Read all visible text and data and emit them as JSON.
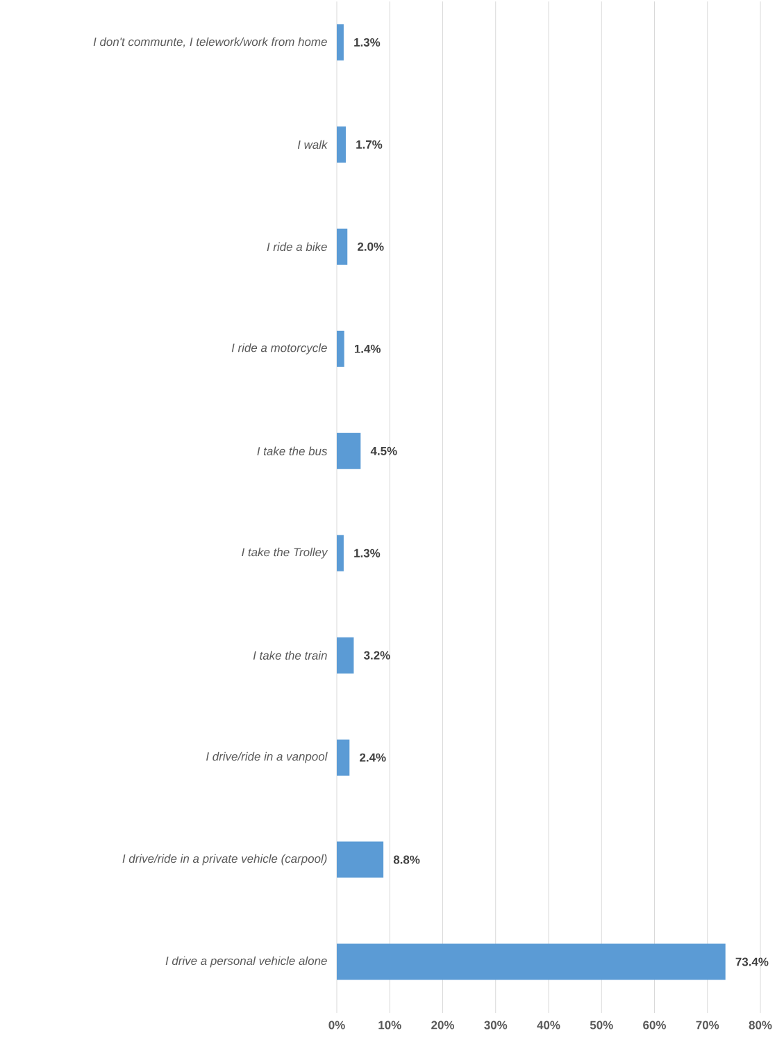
{
  "chart_data": {
    "type": "bar",
    "orientation": "horizontal",
    "categories": [
      "I don't communte, I telework/work from home",
      "I walk",
      "I ride a bike",
      "I ride a motorcycle",
      "I take the bus",
      "I take the Trolley",
      "I take the train",
      "I drive/ride in a vanpool",
      "I drive/ride in a private vehicle (carpool)",
      "I drive a personal vehicle alone"
    ],
    "values": [
      1.3,
      1.7,
      2.0,
      1.4,
      4.5,
      1.3,
      3.2,
      2.4,
      8.8,
      73.4
    ],
    "value_labels": [
      "1.3%",
      "1.7%",
      "2.0%",
      "1.4%",
      "4.5%",
      "1.3%",
      "3.2%",
      "2.4%",
      "8.8%",
      "73.4%"
    ],
    "color": "#5b9bd5",
    "xlim": [
      0,
      80
    ],
    "xticks": [
      {
        "value": 0,
        "label": "0%"
      },
      {
        "value": 10,
        "label": "10%"
      },
      {
        "value": 20,
        "label": "20%"
      },
      {
        "value": 30,
        "label": "30%"
      },
      {
        "value": 40,
        "label": "40%"
      },
      {
        "value": 50,
        "label": "50%"
      },
      {
        "value": 60,
        "label": "60%"
      },
      {
        "value": 70,
        "label": "70%"
      },
      {
        "value": 80,
        "label": "80%"
      }
    ],
    "grid": "x"
  }
}
